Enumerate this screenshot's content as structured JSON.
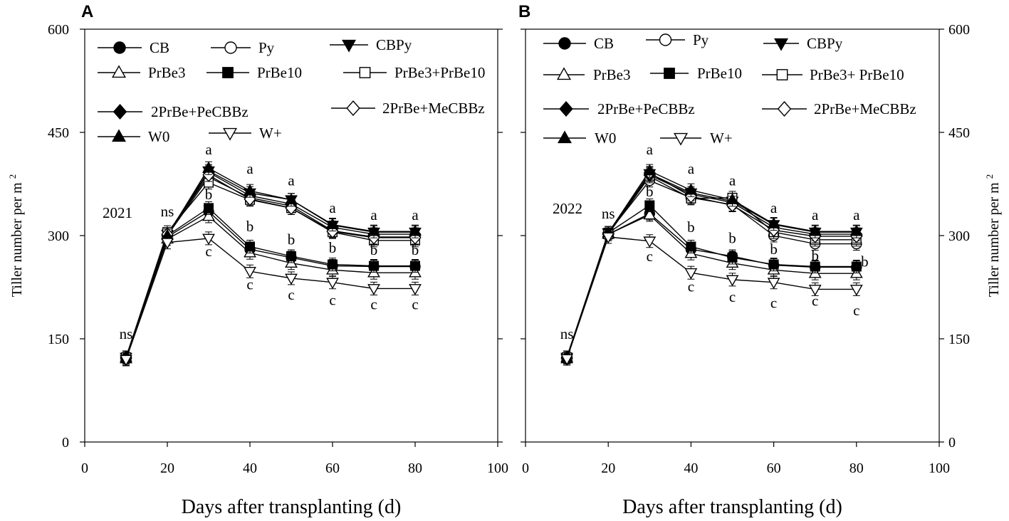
{
  "figure": {
    "xlabel": "Days after transplanting (d)",
    "ylabel_main": "Tiller number per m",
    "ylabel_sup": "2"
  },
  "legend_labels": [
    "CB",
    "Py",
    "CBPy",
    "PrBe3",
    "PrBe10",
    "PrBe3+PrBe10",
    "2PrBe+PeCBBz",
    "2PrBe+MeCBBz",
    "W0",
    "W+"
  ],
  "chart_data": [
    {
      "type": "line",
      "panel": "A",
      "year_label": "2021",
      "xlim": [
        0,
        100
      ],
      "ylim": [
        0,
        600
      ],
      "xticks": [
        0,
        20,
        40,
        60,
        80,
        100
      ],
      "yticks": [
        0,
        150,
        300,
        450,
        600
      ],
      "x": [
        10,
        20,
        30,
        40,
        50,
        60,
        70,
        80
      ],
      "legend": [
        "CB",
        "Py",
        "CBPy",
        "PrBe3",
        "PrBe10",
        "PrBe3+PrBe10",
        "2PrBe+PeCBBz",
        "2PrBe+MeCBBz",
        "W0",
        "W+"
      ],
      "series": [
        {
          "name": "CB",
          "values": [
            123,
            298,
            335,
            280,
            268,
            256,
            255,
            255
          ]
        },
        {
          "name": "Py",
          "values": [
            123,
            300,
            385,
            355,
            343,
            307,
            298,
            298
          ]
        },
        {
          "name": "CBPy",
          "values": [
            123,
            302,
            394,
            362,
            352,
            315,
            305,
            305
          ]
        },
        {
          "name": "PrBe3",
          "values": [
            121,
            295,
            328,
            275,
            260,
            250,
            246,
            246
          ]
        },
        {
          "name": "PrBe10",
          "values": [
            123,
            300,
            340,
            284,
            270,
            258,
            256,
            256
          ]
        },
        {
          "name": "PrBe3+PrBe10",
          "values": [
            123,
            305,
            377,
            352,
            340,
            305,
            293,
            293
          ]
        },
        {
          "name": "2PrBe+PeCBBz",
          "values": [
            123,
            300,
            392,
            358,
            346,
            312,
            302,
            302
          ]
        },
        {
          "name": "2PrBe+MeCBBz",
          "values": [
            121,
            302,
            388,
            353,
            340,
            306,
            297,
            297
          ]
        },
        {
          "name": "W0",
          "values": [
            123,
            300,
            398,
            365,
            352,
            316,
            306,
            306
          ]
        },
        {
          "name": "W+",
          "values": [
            120,
            290,
            296,
            248,
            238,
            232,
            223,
            223
          ]
        }
      ],
      "annotations": [
        {
          "x": 10,
          "y": 150,
          "text": "ns"
        },
        {
          "x": 20,
          "y": 328,
          "text": "ns"
        },
        {
          "x": 30,
          "y": 418,
          "text": "a"
        },
        {
          "x": 30,
          "y": 353,
          "text": "b"
        },
        {
          "x": 30,
          "y": 270,
          "text": "c"
        },
        {
          "x": 40,
          "y": 390,
          "text": "a"
        },
        {
          "x": 40,
          "y": 306,
          "text": "b"
        },
        {
          "x": 40,
          "y": 222,
          "text": "c"
        },
        {
          "x": 50,
          "y": 373,
          "text": "a"
        },
        {
          "x": 50,
          "y": 287,
          "text": "b"
        },
        {
          "x": 50,
          "y": 207,
          "text": "c"
        },
        {
          "x": 60,
          "y": 333,
          "text": "a"
        },
        {
          "x": 60,
          "y": 275,
          "text": "b"
        },
        {
          "x": 60,
          "y": 199,
          "text": "c"
        },
        {
          "x": 70,
          "y": 323,
          "text": "a"
        },
        {
          "x": 70,
          "y": 272,
          "text": "b"
        },
        {
          "x": 70,
          "y": 193,
          "text": "c"
        },
        {
          "x": 80,
          "y": 323,
          "text": "a"
        },
        {
          "x": 80,
          "y": 272,
          "text": "b"
        },
        {
          "x": 80,
          "y": 193,
          "text": "c"
        }
      ]
    },
    {
      "type": "line",
      "panel": "B",
      "year_label": "2022",
      "xlim": [
        0,
        100
      ],
      "ylim": [
        0,
        600
      ],
      "xticks": [
        0,
        20,
        40,
        60,
        80,
        100
      ],
      "yticks": [
        0,
        150,
        300,
        450,
        600
      ],
      "x": [
        10,
        20,
        30,
        40,
        50,
        60,
        70,
        80
      ],
      "legend": [
        "CB",
        "Py",
        "CBPy",
        "PrBe3",
        "PrBe10",
        "PrBe3+ PrBe10",
        "2PrBe+PeCBBz",
        "2PrBe+MeCBBz",
        "W0",
        "W+"
      ],
      "series": [
        {
          "name": "CB",
          "values": [
            123,
            302,
            332,
            280,
            270,
            257,
            254,
            254
          ]
        },
        {
          "name": "Py",
          "values": [
            123,
            304,
            380,
            355,
            345,
            300,
            288,
            288
          ]
        },
        {
          "name": "CBPy",
          "values": [
            123,
            304,
            390,
            362,
            350,
            316,
            305,
            305
          ]
        },
        {
          "name": "PrBe3",
          "values": [
            121,
            302,
            330,
            274,
            260,
            250,
            245,
            245
          ]
        },
        {
          "name": "PrBe10",
          "values": [
            123,
            304,
            344,
            284,
            268,
            258,
            255,
            255
          ]
        },
        {
          "name": "PrBe3+ PrBe10",
          "values": [
            123,
            302,
            386,
            354,
            355,
            305,
            294,
            294
          ]
        },
        {
          "name": "2PrBe+PeCBBz",
          "values": [
            123,
            302,
            388,
            360,
            348,
            312,
            302,
            302
          ]
        },
        {
          "name": "2PrBe+MeCBBz",
          "values": [
            121,
            302,
            391,
            357,
            344,
            308,
            299,
            299
          ]
        },
        {
          "name": "W0",
          "values": [
            123,
            304,
            394,
            366,
            352,
            317,
            306,
            306
          ]
        },
        {
          "name": "W+",
          "values": [
            121,
            298,
            292,
            246,
            236,
            232,
            222,
            222
          ]
        }
      ],
      "annotations": [
        {
          "x": 10,
          "y": 150,
          "text": "ns"
        },
        {
          "x": 20,
          "y": 325,
          "text": "ns"
        },
        {
          "x": 30,
          "y": 418,
          "text": "a"
        },
        {
          "x": 30,
          "y": 357,
          "text": "b"
        },
        {
          "x": 30,
          "y": 263,
          "text": "c"
        },
        {
          "x": 40,
          "y": 390,
          "text": "a"
        },
        {
          "x": 40,
          "y": 305,
          "text": "b"
        },
        {
          "x": 40,
          "y": 219,
          "text": "c"
        },
        {
          "x": 50,
          "y": 373,
          "text": "a"
        },
        {
          "x": 50,
          "y": 289,
          "text": "b"
        },
        {
          "x": 50,
          "y": 204,
          "text": "c"
        },
        {
          "x": 60,
          "y": 333,
          "text": "a"
        },
        {
          "x": 60,
          "y": 273,
          "text": "b"
        },
        {
          "x": 60,
          "y": 195,
          "text": "c"
        },
        {
          "x": 70,
          "y": 323,
          "text": "a"
        },
        {
          "x": 70,
          "y": 264,
          "text": "b"
        },
        {
          "x": 70,
          "y": 198,
          "text": "c"
        },
        {
          "x": 80,
          "y": 323,
          "text": "a"
        },
        {
          "x": 82,
          "y": 255,
          "text": "b"
        },
        {
          "x": 80,
          "y": 184,
          "text": "c"
        }
      ]
    }
  ]
}
